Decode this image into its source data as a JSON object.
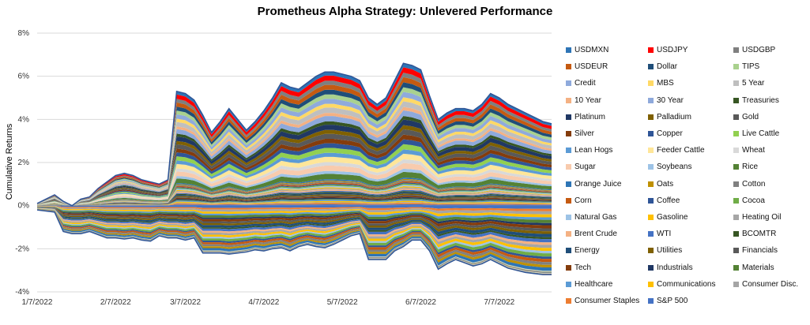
{
  "chart_data": {
    "type": "area",
    "title": "Prometheus Alpha Strategy: Unlevered Performance",
    "ylabel": "Cumulative Returns",
    "xlabel": "",
    "ylim": [
      -4,
      8
    ],
    "yticks": [
      "8%",
      "6%",
      "4%",
      "2%",
      "0%",
      "-2%",
      "-4%"
    ],
    "ytick_values": [
      8,
      6,
      4,
      2,
      0,
      -2,
      -4
    ],
    "xticks": [
      "1/7/2022",
      "2/7/2022",
      "3/7/2022",
      "4/7/2022",
      "5/7/2022",
      "6/7/2022",
      "7/7/2022"
    ],
    "xtick_index": [
      0,
      9,
      17,
      26,
      35,
      44,
      53
    ],
    "n_points": 60,
    "total_top": [
      0.1,
      0.3,
      0.5,
      0.2,
      0.0,
      0.3,
      0.4,
      0.8,
      1.1,
      1.4,
      1.5,
      1.4,
      1.2,
      1.1,
      1.0,
      1.2,
      5.3,
      5.2,
      4.9,
      4.2,
      3.4,
      3.9,
      4.5,
      4.0,
      3.5,
      3.9,
      4.4,
      5.0,
      5.7,
      5.5,
      5.4,
      5.7,
      6.0,
      6.2,
      6.2,
      6.1,
      6.0,
      5.8,
      5.0,
      4.7,
      5.0,
      5.8,
      6.6,
      6.5,
      6.3,
      5.1,
      4.0,
      4.3,
      4.5,
      4.5,
      4.4,
      4.7,
      5.2,
      5.0,
      4.7,
      4.5,
      4.3,
      4.1,
      3.9,
      3.8
    ],
    "total_bottom": [
      -0.2,
      -0.25,
      -0.3,
      -1.2,
      -1.3,
      -1.3,
      -1.2,
      -1.35,
      -1.5,
      -1.5,
      -1.55,
      -1.5,
      -1.6,
      -1.65,
      -1.4,
      -1.5,
      -1.5,
      -1.6,
      -1.5,
      -2.2,
      -2.2,
      -2.2,
      -2.25,
      -2.2,
      -2.15,
      -2.05,
      -2.1,
      -2.0,
      -1.95,
      -2.1,
      -1.9,
      -1.8,
      -1.9,
      -1.95,
      -1.8,
      -1.6,
      -1.4,
      -1.3,
      -2.5,
      -2.5,
      -2.5,
      -2.1,
      -1.9,
      -1.6,
      -1.6,
      -2.1,
      -2.95,
      -2.7,
      -2.5,
      -2.65,
      -2.8,
      -2.7,
      -2.5,
      -2.7,
      -2.9,
      -3.0,
      -3.1,
      -3.15,
      -3.2,
      -3.2
    ],
    "series": [
      {
        "name": "USDMXN",
        "color": "#2e75b6"
      },
      {
        "name": "USDJPY",
        "color": "#ff0000"
      },
      {
        "name": "USDGBP",
        "color": "#7f7f7f"
      },
      {
        "name": "USDEUR",
        "color": "#c55a11"
      },
      {
        "name": "Dollar",
        "color": "#1f4e79"
      },
      {
        "name": "TIPS",
        "color": "#a9d18e"
      },
      {
        "name": "Credit",
        "color": "#8faadc"
      },
      {
        "name": "MBS",
        "color": "#ffd966"
      },
      {
        "name": "5 Year",
        "color": "#bfbfbf"
      },
      {
        "name": "10 Year",
        "color": "#f4b183"
      },
      {
        "name": "30 Year",
        "color": "#8ea9db"
      },
      {
        "name": "Treasuries",
        "color": "#375623"
      },
      {
        "name": "Platinum",
        "color": "#203864"
      },
      {
        "name": "Palladium",
        "color": "#7f6000"
      },
      {
        "name": "Gold",
        "color": "#595959"
      },
      {
        "name": "Silver",
        "color": "#843c0c"
      },
      {
        "name": "Copper",
        "color": "#2f5597"
      },
      {
        "name": "Live Cattle",
        "color": "#92d050"
      },
      {
        "name": "Lean Hogs",
        "color": "#5b9bd5"
      },
      {
        "name": "Feeder Cattle",
        "color": "#ffe699"
      },
      {
        "name": "Wheat",
        "color": "#d9d9d9"
      },
      {
        "name": "Sugar",
        "color": "#f8cbad"
      },
      {
        "name": "Soybeans",
        "color": "#9dc3e6"
      },
      {
        "name": "Rice",
        "color": "#548235"
      },
      {
        "name": "Orange Juice",
        "color": "#2e75b6"
      },
      {
        "name": "Oats",
        "color": "#bf9000"
      },
      {
        "name": "Cotton",
        "color": "#808080"
      },
      {
        "name": "Corn",
        "color": "#c55a11"
      },
      {
        "name": "Coffee",
        "color": "#2f5597"
      },
      {
        "name": "Cocoa",
        "color": "#70ad47"
      },
      {
        "name": "Natural Gas",
        "color": "#9dc3e6"
      },
      {
        "name": "Gasoline",
        "color": "#ffc000"
      },
      {
        "name": "Heating Oil",
        "color": "#a6a6a6"
      },
      {
        "name": "Brent Crude",
        "color": "#f4b183"
      },
      {
        "name": "WTI",
        "color": "#4472c4"
      },
      {
        "name": "BCOMTR",
        "color": "#375623"
      },
      {
        "name": "Energy",
        "color": "#1f4e79"
      },
      {
        "name": "Utilities",
        "color": "#7f6000"
      },
      {
        "name": "Financials",
        "color": "#595959"
      },
      {
        "name": "Tech",
        "color": "#843c0c"
      },
      {
        "name": "Industrials",
        "color": "#203864"
      },
      {
        "name": "Materials",
        "color": "#548235"
      },
      {
        "name": "Healthcare",
        "color": "#5b9bd5"
      },
      {
        "name": "Communications",
        "color": "#ffc000"
      },
      {
        "name": "Consumer Disc.",
        "color": "#a5a5a5"
      },
      {
        "name": "Consumer Staples",
        "color": "#ed7d31"
      },
      {
        "name": "S&P 500",
        "color": "#4472c4"
      }
    ]
  }
}
